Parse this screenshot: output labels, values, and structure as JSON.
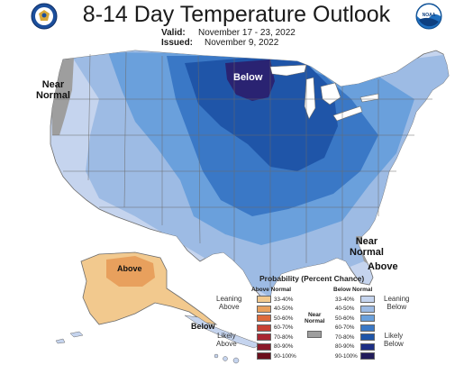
{
  "title": "8-14 Day Temperature Outlook",
  "valid_label": "Valid:",
  "valid_value": "November 17 - 23, 2022",
  "issued_label": "Issued:",
  "issued_value": "November 9, 2022",
  "logos": {
    "left": "doc-seal",
    "right_text": "NOAA"
  },
  "map_labels": {
    "below_main": "Below",
    "near_normal_west": "Near\nNormal",
    "near_normal_southeast": "Near\nNormal",
    "above_florida": "Above",
    "above_alaska": "Above",
    "below_aleutians": "Below"
  },
  "legend": {
    "title": "Probability (Percent Chance)",
    "above_header": "Above Normal",
    "below_header": "Below Normal",
    "near_header": "Near\nNormal",
    "leaning_above": "Leaning\nAbove",
    "likely_above": "Likely\nAbove",
    "leaning_below": "Leaning\nBelow",
    "likely_below": "Likely\nBelow",
    "categories": [
      "33-40%",
      "40-50%",
      "50-60%",
      "60-70%",
      "70-80%",
      "80-90%",
      "90-100%"
    ],
    "above_colors": [
      "#f2c98e",
      "#e8a05d",
      "#dd6a3b",
      "#c74133",
      "#a92631",
      "#8a1a2a",
      "#6b0f1c"
    ],
    "below_colors": [
      "#c5d4ee",
      "#9dbbe4",
      "#6aa0dc",
      "#3a78c6",
      "#1f55a8",
      "#1d2f85",
      "#221c5a"
    ],
    "near_color": "#9e9e9e"
  },
  "map_colors": {
    "land_base": "#b2c8ea",
    "below_33": "#c5d4ee",
    "below_40": "#9dbbe4",
    "below_50": "#6aa0dc",
    "below_60": "#3a78c6",
    "below_70": "#1f55a8",
    "below_80": "#1d2f85",
    "near": "#9e9e9e",
    "above_33": "#f2c98e",
    "above_40": "#e8a05d",
    "water": "#ffffff",
    "lines": "#6b6b6b"
  }
}
